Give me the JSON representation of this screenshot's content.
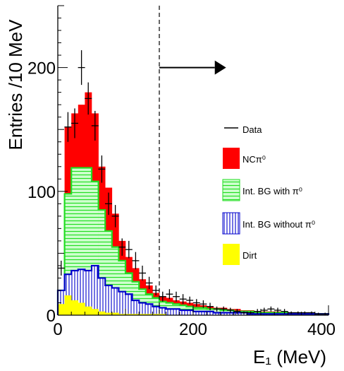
{
  "chart_data": {
    "type": "histogram",
    "xlabel": "E₁ (MeV)",
    "ylabel": "Entries /10 MeV",
    "xlim": [
      0,
      400
    ],
    "ylim": [
      0,
      250
    ],
    "grid": false,
    "legend_position": "right",
    "x_ticks": [
      {
        "value": 0,
        "label": "0"
      },
      {
        "value": 200,
        "label": "200"
      },
      {
        "value": 400,
        "label": "400"
      }
    ],
    "y_ticks": [
      {
        "value": 0,
        "label": "0"
      },
      {
        "value": 100,
        "label": "100"
      },
      {
        "value": 200,
        "label": "200"
      }
    ],
    "bin_width": 10,
    "bin_edges": [
      0,
      10,
      20,
      30,
      40,
      50,
      60,
      70,
      80,
      90,
      100,
      110,
      120,
      130,
      140,
      150,
      160,
      170,
      180,
      190,
      200,
      210,
      220,
      230,
      240,
      250,
      260,
      270,
      280,
      290,
      300,
      310,
      320,
      330,
      340,
      350,
      360,
      370,
      380,
      390,
      400
    ],
    "cut": {
      "x": 150,
      "direction": "right"
    },
    "colors": {
      "nc": "#ff0000",
      "with_pi0_fill": "#cfffcf",
      "with_pi0_hatch": "#22dd22",
      "without_pi0_hatch": "#0000cc",
      "dirt": "#ffff00",
      "data": "#000000"
    },
    "series": [
      {
        "key": "total",
        "name": "NCπ⁰",
        "style": "stacked-total",
        "values": [
          20,
          152,
          163,
          170,
          180,
          163,
          120,
          103,
          82,
          60,
          47,
          38,
          29,
          24,
          18,
          15,
          14,
          12,
          11,
          10,
          9,
          8,
          7,
          6,
          6,
          5,
          5,
          4,
          4,
          3,
          3,
          3,
          3,
          2,
          2,
          2,
          2,
          1,
          1,
          1
        ]
      },
      {
        "key": "bg_with",
        "name": "Int. BG with π⁰",
        "style": "hatch-horizontal",
        "values": [
          20,
          98,
          119,
          119,
          119,
          108,
          85,
          68,
          55,
          44,
          34,
          27,
          21,
          17,
          14,
          11,
          10,
          9,
          8,
          7,
          6,
          6,
          5,
          5,
          4,
          4,
          3,
          3,
          3,
          2,
          2,
          2,
          2,
          2,
          1,
          1,
          1,
          1,
          1,
          1
        ]
      },
      {
        "key": "bg_without",
        "name": "Int. BG without π⁰",
        "style": "hatch-vertical",
        "values": [
          20,
          33,
          36,
          37,
          36,
          40,
          30,
          24,
          22,
          19,
          17,
          12,
          10,
          9,
          7,
          6,
          5,
          5,
          4,
          4,
          3,
          3,
          3,
          2,
          2,
          2,
          2,
          2,
          1,
          1,
          1,
          1,
          1,
          1,
          1,
          1,
          1,
          1,
          1,
          1
        ]
      },
      {
        "key": "dirt",
        "name": "Dirt",
        "style": "solid",
        "values": [
          9,
          16,
          12,
          10,
          7,
          5,
          3,
          2,
          2,
          1,
          1,
          1,
          1,
          1,
          1,
          1,
          0,
          0,
          0,
          0,
          0,
          0,
          0,
          0,
          0,
          0,
          0,
          0,
          0,
          0,
          0,
          0,
          0,
          0,
          0,
          0,
          0,
          0,
          0,
          0
        ]
      }
    ],
    "data_points": {
      "name": "Data",
      "x": [
        5,
        15,
        25,
        35,
        45,
        55,
        65,
        75,
        85,
        95,
        105,
        115,
        125,
        135,
        145,
        155,
        165,
        175,
        185,
        195,
        205,
        215,
        225,
        235,
        245,
        255,
        265,
        275,
        285,
        295,
        305,
        315,
        325,
        335,
        345,
        355,
        365,
        375,
        385,
        395
      ],
      "y": [
        38,
        152,
        155,
        200,
        175,
        153,
        118,
        90,
        80,
        55,
        53,
        44,
        34,
        26,
        20,
        15,
        17,
        15,
        13,
        12,
        10,
        9,
        7,
        5,
        5,
        4,
        3,
        2,
        2,
        3,
        4,
        5,
        4,
        3,
        2,
        2,
        2,
        2,
        1,
        1
      ],
      "yerr": [
        6,
        12,
        12,
        14,
        13,
        12,
        11,
        9,
        9,
        7,
        7,
        7,
        6,
        5,
        4,
        4,
        4,
        4,
        4,
        3,
        3,
        3,
        3,
        2,
        2,
        2,
        2,
        1,
        1,
        2,
        2,
        2,
        2,
        2,
        1,
        1,
        1,
        1,
        1,
        1
      ]
    }
  }
}
